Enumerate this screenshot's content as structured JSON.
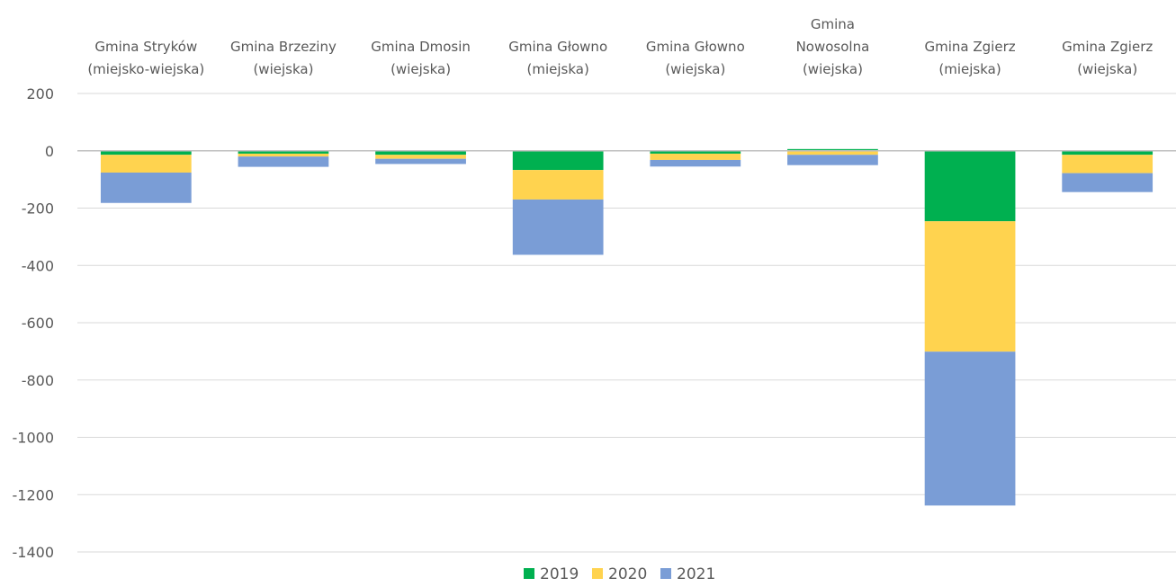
{
  "chart_data": {
    "type": "bar",
    "stacked": true,
    "categories": [
      [
        "Gmina Stryków",
        "(miejsko-wiejska)"
      ],
      [
        "Gmina Brzeziny",
        "(wiejska)"
      ],
      [
        "Gmina Dmosin",
        "(wiejska)"
      ],
      [
        "Gmina Głowno",
        "(miejska)"
      ],
      [
        "Gmina Głowno",
        "(wiejska)"
      ],
      [
        "Gmina",
        "Nowosolna",
        "(wiejska)"
      ],
      [
        "Gmina Zgierz",
        "(miejska)"
      ],
      [
        "Gmina Zgierz",
        "(wiejska)"
      ]
    ],
    "series": [
      {
        "name": "2019",
        "color": "#00B050",
        "values": [
          -14,
          -10,
          -14,
          -67,
          -10,
          6,
          -246,
          -14
        ]
      },
      {
        "name": "2020",
        "color": "#FFD34F",
        "values": [
          -62,
          -10,
          -14,
          -103,
          -22,
          -14,
          -455,
          -64
        ]
      },
      {
        "name": "2021",
        "color": "#7A9DD6",
        "values": [
          -106,
          -36,
          -18,
          -193,
          -23,
          -36,
          -537,
          -66
        ]
      }
    ],
    "ylim": [
      -1400,
      200
    ],
    "yticks": [
      200,
      0,
      -200,
      -400,
      -600,
      -800,
      -1000,
      -1200,
      -1400
    ],
    "category_axis_position": "top",
    "grid": true,
    "legend": "bottom"
  }
}
